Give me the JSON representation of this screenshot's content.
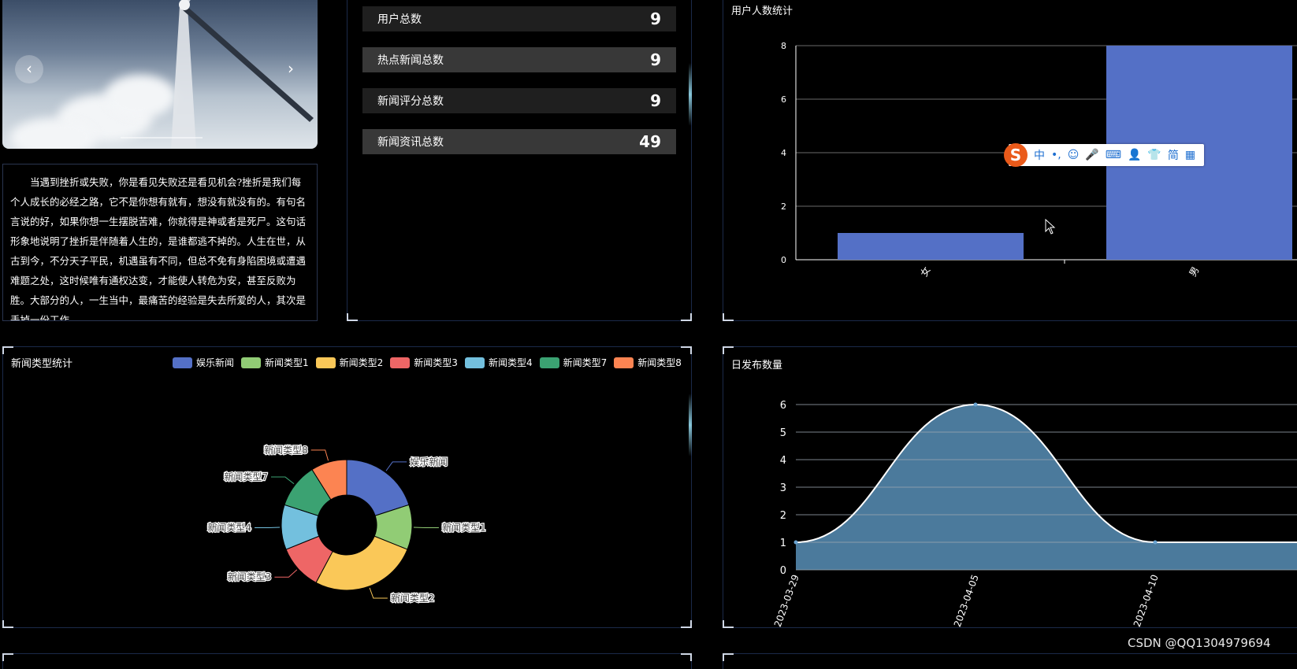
{
  "carousel": {
    "prev_label": "‹",
    "next_label": "›"
  },
  "article": {
    "text": "当遇到挫折或失败，你是看见失败还是看见机会?挫折是我们每个人成长的必经之路，它不是你想有就有，想没有就没有的。有句名言说的好，如果你想一生摆脱苦难，你就得是神或者是死尸。这句话形象地说明了挫折是伴随着人生的，是谁都逃不掉的。人生在世，从古到今，不分天子平民，机遇虽有不同，但总不免有身陷困境或遭遇难题之处，这时候唯有通权达变，才能使人转危为安，甚至反败为胜。大部分的人，一生当中，最痛苦的经验是失去所爱的人，其次是丢掉一份工作"
  },
  "stats": [
    {
      "label": "用户总数",
      "value": "9"
    },
    {
      "label": "热点新闻总数",
      "value": "9"
    },
    {
      "label": "新闻评分总数",
      "value": "9"
    },
    {
      "label": "新闻资讯总数",
      "value": "49"
    }
  ],
  "user_chart_title": "用户人数统计",
  "news_type_title": "新闻类型统计",
  "daily_title": "日发布数量",
  "ime_toolbar": {
    "logo": "S",
    "items": [
      "中",
      "•,",
      "☺",
      "🎤",
      "⌨",
      "👤",
      "👕",
      "简",
      "▦"
    ]
  },
  "watermark": "CSDN @QQ1304979694",
  "colors": {
    "bar": "#5470c6",
    "area": "#4f81a4"
  },
  "chart_data": [
    {
      "type": "bar",
      "title": "用户人数统计",
      "categories": [
        "女",
        "男"
      ],
      "values": [
        1,
        8
      ],
      "ylim": [
        0,
        8
      ],
      "yticks": [
        0,
        2,
        4,
        6,
        8
      ]
    },
    {
      "type": "pie",
      "title": "新闻类型统计",
      "donut": true,
      "legend_position": "top-right",
      "series": [
        {
          "name": "娱乐新闻",
          "value": 9,
          "color": "#5470c6"
        },
        {
          "name": "新闻类型1",
          "value": 5,
          "color": "#91cc75"
        },
        {
          "name": "新闻类型2",
          "value": 12,
          "color": "#fac858"
        },
        {
          "name": "新闻类型3",
          "value": 5,
          "color": "#ee6666"
        },
        {
          "name": "新闻类型4",
          "value": 5,
          "color": "#73c0de"
        },
        {
          "name": "新闻类型7",
          "value": 5,
          "color": "#3ba272"
        },
        {
          "name": "新闻类型8",
          "value": 4,
          "color": "#fc8452"
        }
      ]
    },
    {
      "type": "area",
      "title": "日发布数量",
      "x": [
        "2023-03-29",
        "2023-04-05",
        "2023-04-10",
        ""
      ],
      "y": [
        1,
        6,
        1,
        1
      ],
      "ylim": [
        0,
        6
      ],
      "yticks": [
        0,
        1,
        2,
        3,
        4,
        5,
        6
      ]
    }
  ]
}
